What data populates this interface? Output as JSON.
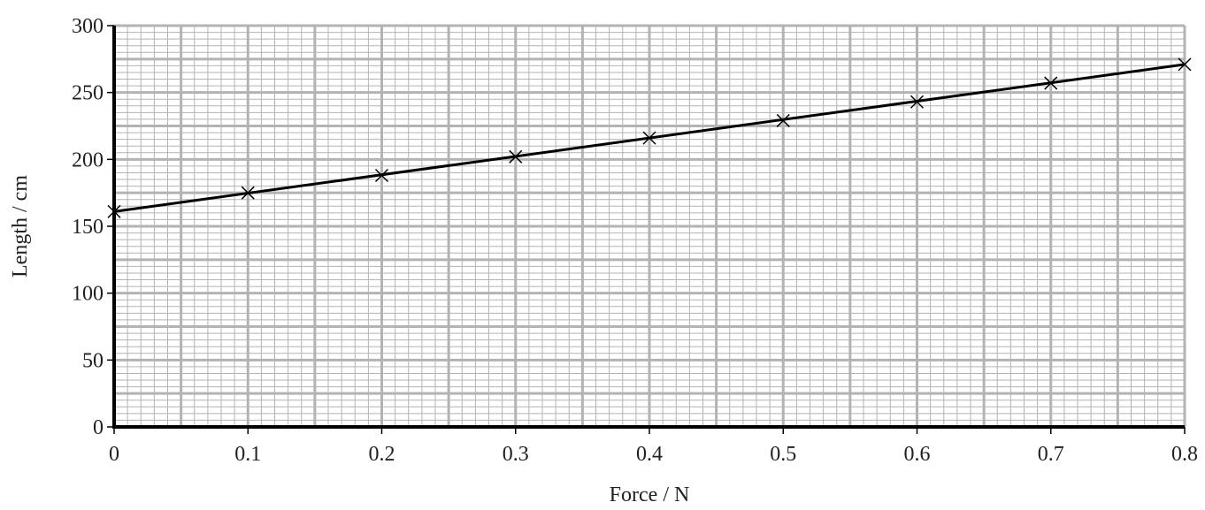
{
  "chart_data": {
    "type": "line",
    "xlabel": "Force / N",
    "ylabel": "Length / cm",
    "xlim": [
      0,
      0.8
    ],
    "ylim": [
      0,
      300
    ],
    "x_ticks": [
      0,
      0.1,
      0.2,
      0.3,
      0.4,
      0.5,
      0.6,
      0.7,
      0.8
    ],
    "x_tick_labels": [
      "0",
      "0.1",
      "0.2",
      "0.3",
      "0.4",
      "0.5",
      "0.6",
      "0.7",
      "0.8"
    ],
    "y_ticks": [
      0,
      50,
      100,
      150,
      200,
      250,
      300
    ],
    "y_tick_labels": [
      "0",
      "50",
      "100",
      "150",
      "200",
      "250",
      "300"
    ],
    "grid": true,
    "grid_minor_x": 0.01,
    "grid_minor_y": 5,
    "grid_major_x": 0.05,
    "grid_major_y": 25,
    "marker": "cross",
    "line_color": "#000000",
    "grid_color": "#b3b3b3",
    "series": [
      {
        "x": [
          0,
          0.1,
          0.2,
          0.3,
          0.4,
          0.5,
          0.6,
          0.7,
          0.8
        ],
        "y": [
          161,
          175,
          188,
          202,
          216,
          229,
          243,
          257,
          271
        ]
      }
    ],
    "best_fit_line": {
      "x": [
        0,
        0.8
      ],
      "y": [
        161,
        271
      ]
    }
  }
}
